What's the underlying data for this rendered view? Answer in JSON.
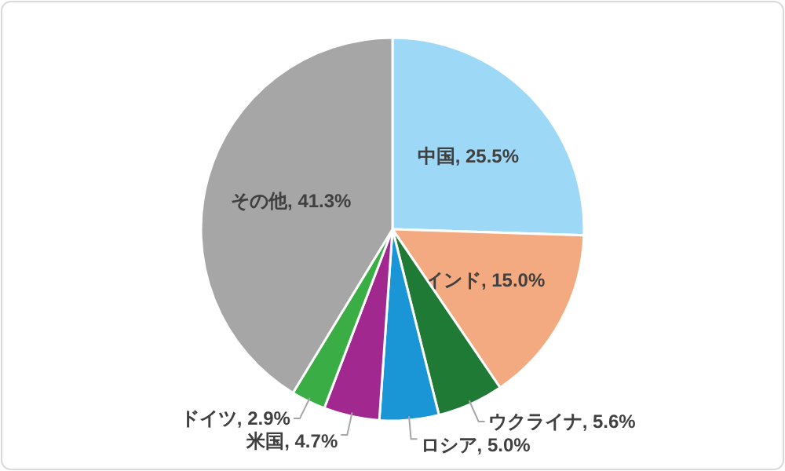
{
  "chart_data": {
    "type": "pie",
    "categories": [
      "中国",
      "インド",
      "ウクライナ",
      "ロシア",
      "米国",
      "ドイツ",
      "その他"
    ],
    "values": [
      25.5,
      15.0,
      5.6,
      5.0,
      4.7,
      2.9,
      41.3
    ],
    "value_labels": [
      "25.5%",
      "15.0%",
      "5.6%",
      "5.0%",
      "4.7%",
      "2.9%",
      "41.3%"
    ],
    "colors": [
      "#9dd8f7",
      "#f4aa80",
      "#1f7a35",
      "#1a96d6",
      "#a0288e",
      "#3aae45",
      "#a6a6a6"
    ]
  }
}
